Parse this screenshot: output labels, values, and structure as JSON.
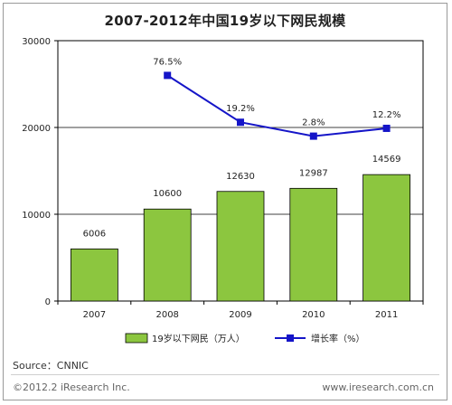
{
  "chart_data": {
    "type": "bar+line",
    "title": "2007-2012年中国19岁以下网民规模",
    "categories": [
      "2007",
      "2008",
      "2009",
      "2010",
      "2011"
    ],
    "bar_series": {
      "name": "19岁以下网民（万人）",
      "values": [
        6006,
        10600,
        12630,
        12987,
        14569
      ],
      "labels": [
        "6006",
        "10600",
        "12630",
        "12987",
        "14569"
      ],
      "color": "#8cc63f"
    },
    "line_series": {
      "name": "增长率（%）",
      "values": [
        null,
        76.5,
        19.2,
        2.8,
        12.2
      ],
      "labels": [
        "",
        "76.5%",
        "19.2%",
        "2.8%",
        "12.2%"
      ],
      "color": "#1515c8",
      "plot_values": [
        null,
        26000,
        20600,
        19000,
        19900
      ]
    },
    "y_ticks": [
      "0",
      "10000",
      "20000",
      "30000"
    ],
    "y_tick_values": [
      0,
      10000,
      20000,
      30000
    ],
    "ylim": [
      0,
      30000
    ],
    "grid": true,
    "legend_position": "bottom"
  },
  "footer": {
    "source": "Source：CNNIC",
    "copyright": "©2012.2 iResearch Inc.",
    "url": "www.iresearch.com.cn"
  }
}
